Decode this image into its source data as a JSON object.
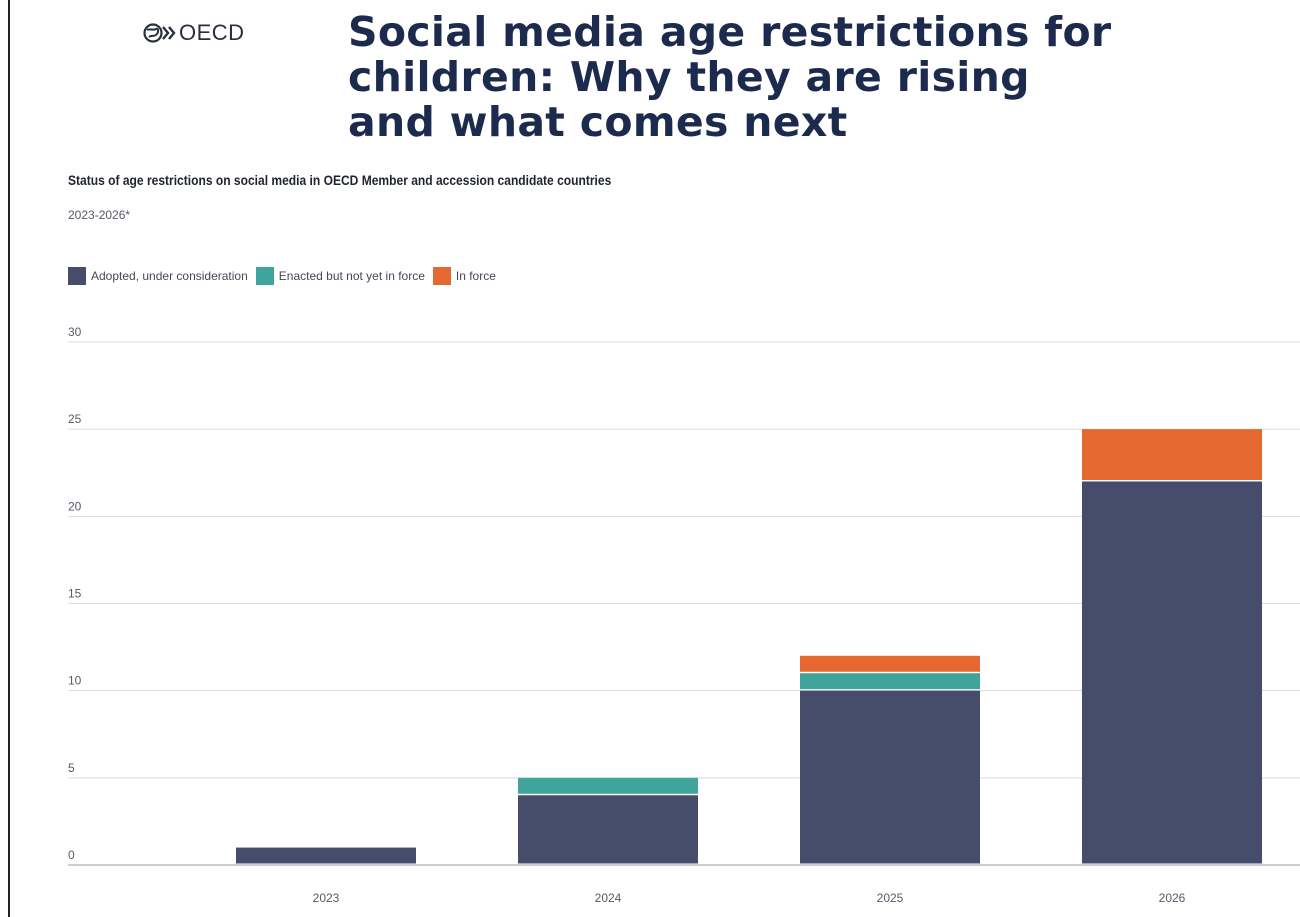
{
  "header": {
    "logo_text": "OECD",
    "headline": "Social media age restrictions for\nchildren: Why they are rising\nand what comes next"
  },
  "chart_data": {
    "type": "bar",
    "stacked": true,
    "title": "Status of age restrictions on social media in OECD Member and accession candidate countries",
    "subtitle": "2023-2026*",
    "categories": [
      "2023",
      "2024",
      "2025",
      "2026"
    ],
    "series": [
      {
        "name": "Adopted, under consideration",
        "color": "#454c6c",
        "values": [
          1,
          4,
          10,
          22
        ]
      },
      {
        "name": "Enacted but not yet in force",
        "color": "#3fa59c",
        "values": [
          0,
          1,
          1,
          0
        ]
      },
      {
        "name": "In force",
        "color": "#e4682f",
        "values": [
          0,
          0,
          1,
          3
        ]
      }
    ],
    "ylim": [
      0,
      30
    ],
    "yticks": [
      0,
      5,
      10,
      15,
      20,
      25,
      30
    ],
    "grid": true,
    "legend": "top-left"
  }
}
